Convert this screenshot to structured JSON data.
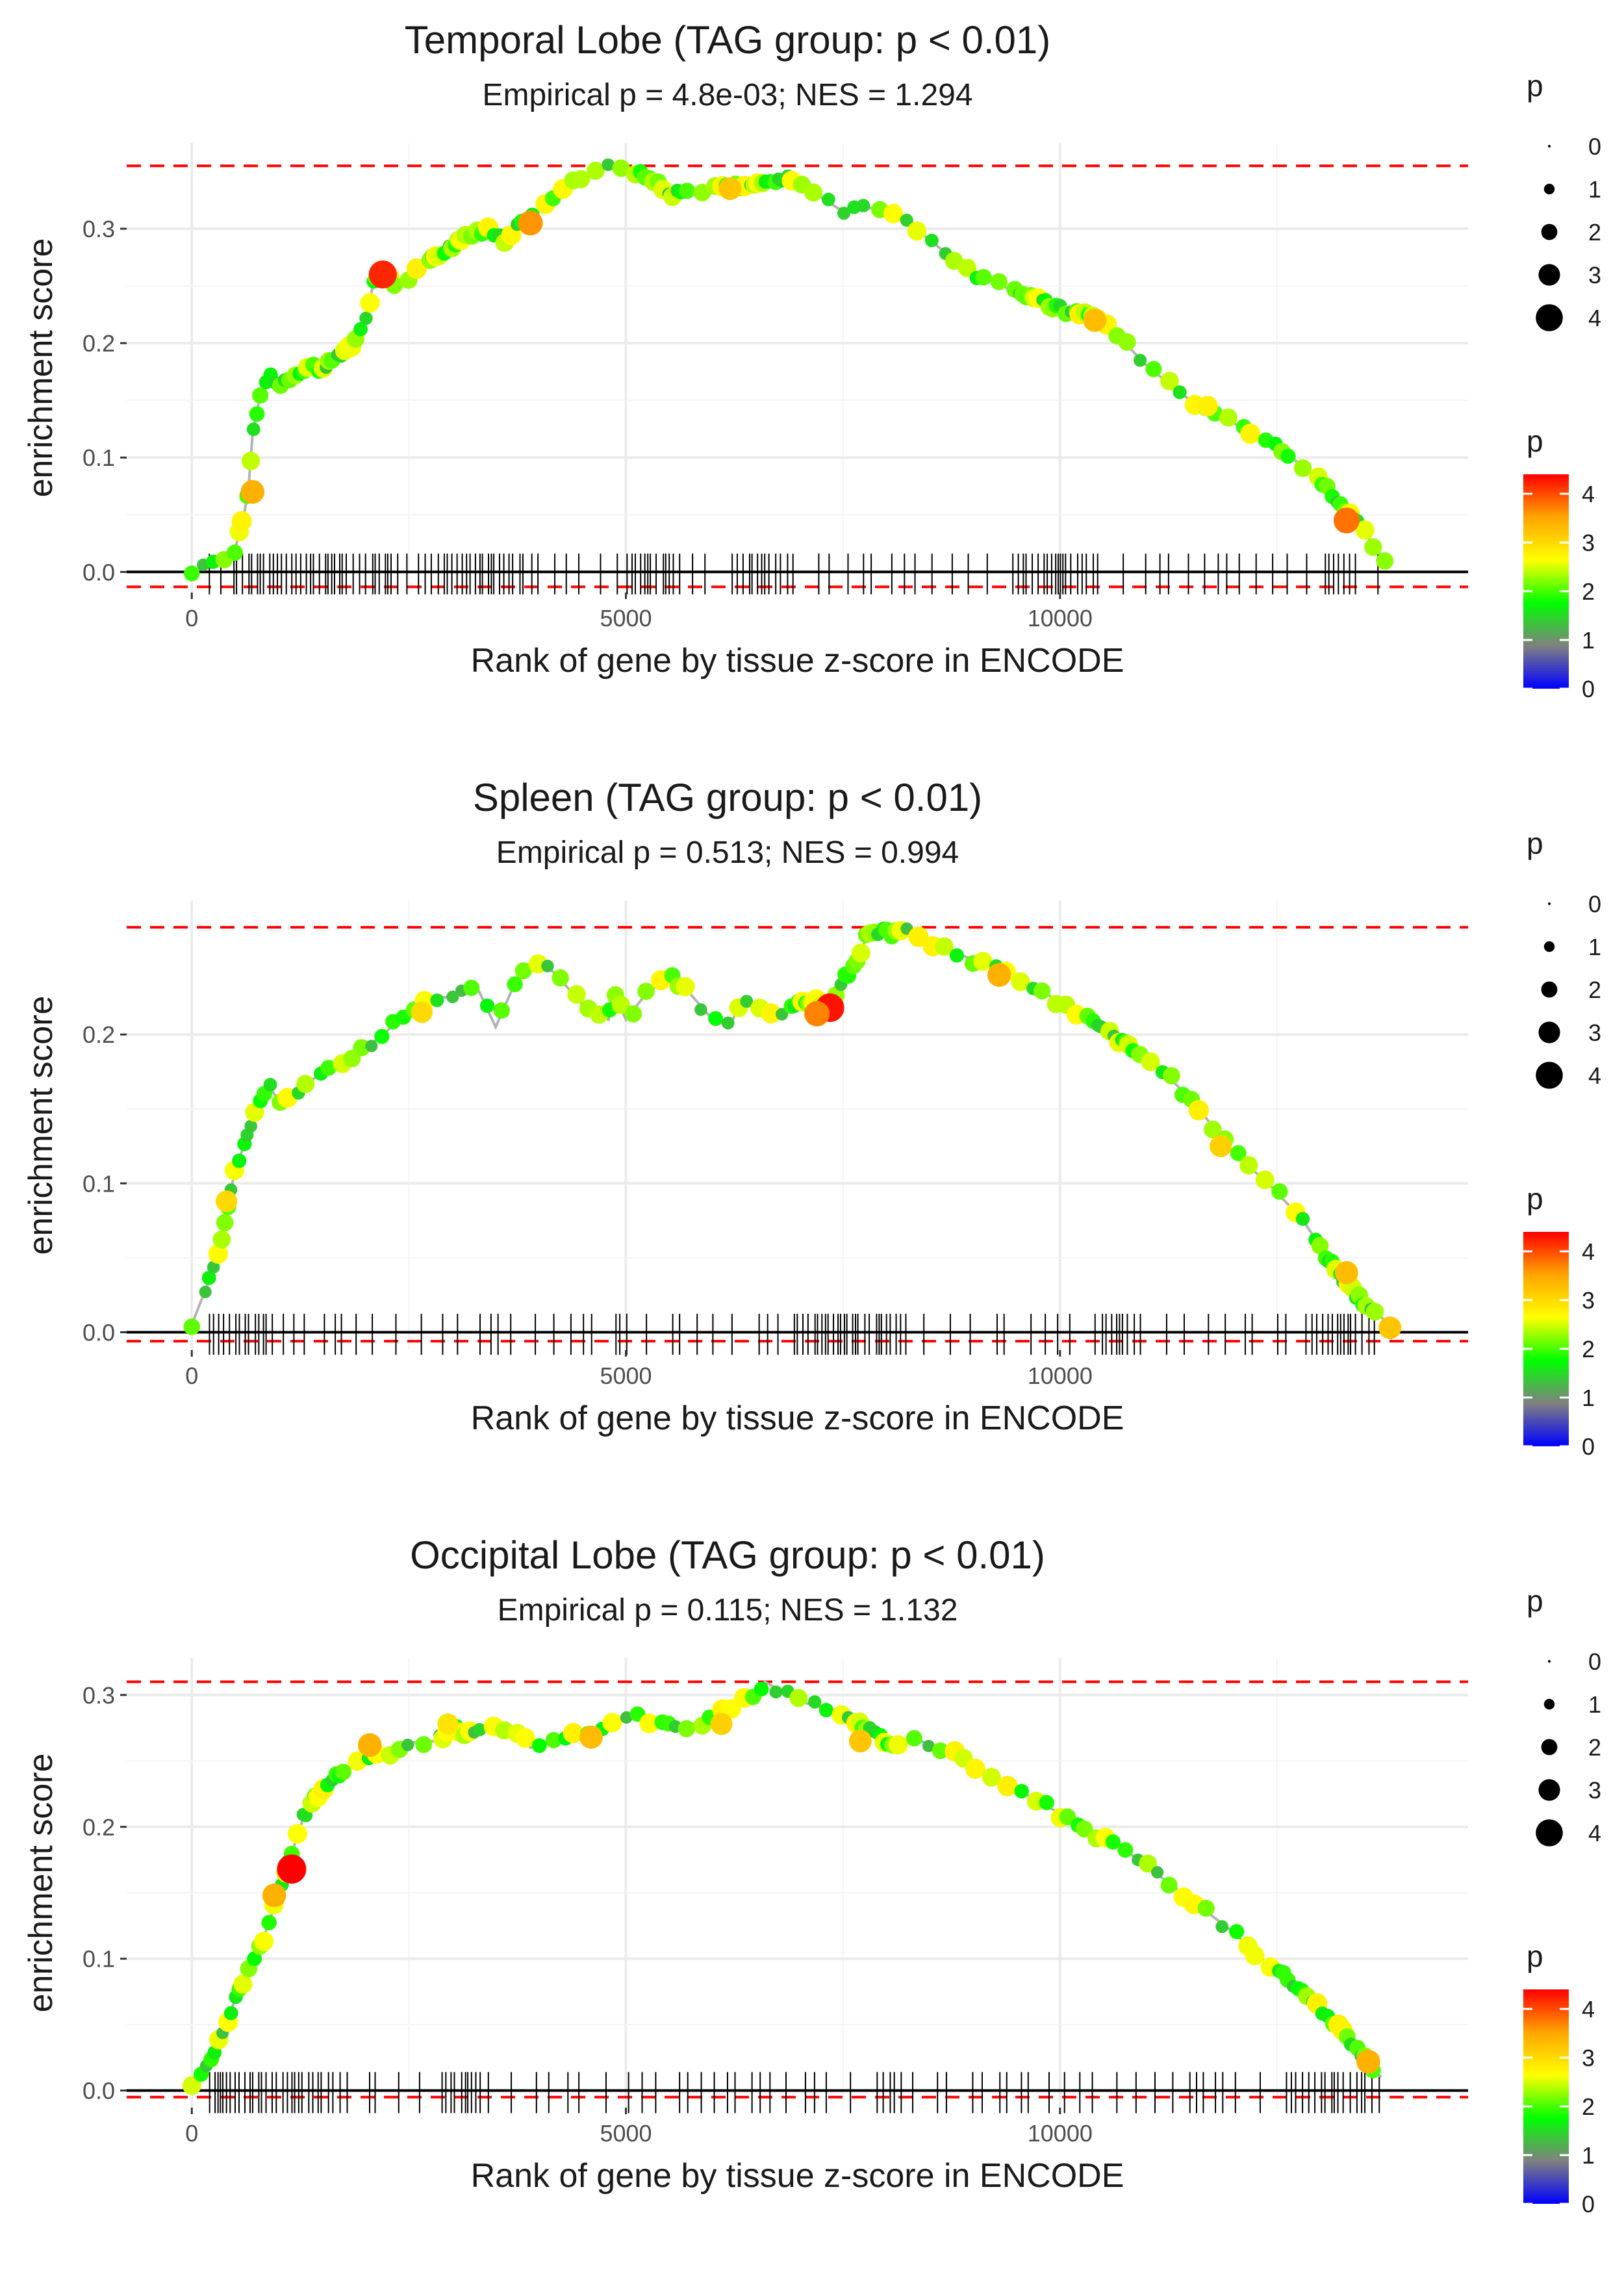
{
  "chart_data": [
    {
      "type": "line",
      "title": "Temporal Lobe (TAG group: p < 0.01)",
      "subtitle": "Empirical p = 4.8e-03; NES = 1.294",
      "xlabel": "Rank of gene by tissue z-score in ENCODE",
      "ylabel": "enrichment score",
      "xlim": [
        -750,
        14700
      ],
      "ylim": [
        -0.018,
        0.375
      ],
      "x_ticks": [
        0,
        5000,
        10000
      ],
      "y_ticks": [
        0.0,
        0.1,
        0.2,
        0.3
      ],
      "y_tick_labels": [
        "0.0",
        "0.1",
        "0.2",
        "0.3"
      ],
      "max_es": 0.355,
      "min_es": -0.013,
      "curve": {
        "x": [
          0,
          150,
          300,
          500,
          600,
          650,
          700,
          750,
          800,
          900,
          1000,
          1200,
          1400,
          1500,
          1600,
          1700,
          1800,
          1900,
          2000,
          2100,
          2200,
          2400,
          2600,
          2800,
          3000,
          3200,
          3400,
          3600,
          3800,
          4000,
          4200,
          4500,
          4700,
          5000,
          5300,
          5500,
          6000,
          6500,
          6900,
          7200,
          7500,
          8000,
          8500,
          9000,
          9500,
          10000,
          10500,
          11000,
          11500,
          12000,
          12500,
          13000,
          13400,
          13800
        ],
        "y": [
          0.0,
          0.005,
          0.01,
          0.02,
          0.05,
          0.07,
          0.12,
          0.14,
          0.16,
          0.17,
          0.165,
          0.17,
          0.18,
          0.175,
          0.185,
          0.19,
          0.195,
          0.205,
          0.22,
          0.255,
          0.26,
          0.25,
          0.265,
          0.275,
          0.285,
          0.295,
          0.3,
          0.29,
          0.305,
          0.315,
          0.33,
          0.345,
          0.355,
          0.353,
          0.345,
          0.33,
          0.335,
          0.34,
          0.345,
          0.33,
          0.315,
          0.32,
          0.29,
          0.26,
          0.245,
          0.23,
          0.22,
          0.18,
          0.15,
          0.13,
          0.11,
          0.08,
          0.045,
          0.005
        ]
      },
      "highlights": [
        {
          "x": 2200,
          "y": 0.26,
          "p": 4.2
        },
        {
          "x": 700,
          "y": 0.07,
          "p": 3.4
        },
        {
          "x": 3900,
          "y": 0.305,
          "p": 3.6
        },
        {
          "x": 6200,
          "y": 0.335,
          "p": 3.2
        },
        {
          "x": 10400,
          "y": 0.22,
          "p": 3.3
        },
        {
          "x": 13300,
          "y": 0.045,
          "p": 3.8
        },
        {
          "x": 11700,
          "y": 0.145,
          "p": 2.8
        }
      ],
      "dense_zones": [
        [
          400,
          2300
        ],
        [
          2600,
          3800
        ],
        [
          5000,
          5600
        ],
        [
          6100,
          6900
        ],
        [
          9400,
          10400
        ],
        [
          12900,
          13400
        ]
      ],
      "rug_seed": 11
    },
    {
      "type": "line",
      "title": "Spleen (TAG group: p < 0.01)",
      "subtitle": "Empirical p = 0.513; NES = 0.994",
      "xlabel": "Rank of gene by tissue z-score in ENCODE",
      "ylabel": "enrichment score",
      "xlim": [
        -750,
        14700
      ],
      "ylim": [
        -0.012,
        0.29
      ],
      "x_ticks": [
        0,
        5000,
        10000
      ],
      "y_ticks": [
        0.0,
        0.1,
        0.2
      ],
      "y_tick_labels": [
        "0.0",
        "0.1",
        "0.2"
      ],
      "max_es": 0.272,
      "min_es": -0.006,
      "curve": {
        "x": [
          0,
          100,
          200,
          300,
          400,
          500,
          600,
          700,
          800,
          900,
          1000,
          1200,
          1400,
          1600,
          1800,
          2000,
          2200,
          2400,
          2600,
          2800,
          3000,
          3200,
          3300,
          3500,
          3800,
          4000,
          4200,
          4500,
          4800,
          4850,
          5000,
          5200,
          5500,
          5700,
          6000,
          6200,
          6300,
          6500,
          6800,
          7000,
          7300,
          7500,
          7700,
          7800,
          8000,
          8300,
          8600,
          9000,
          9400,
          9800,
          10000,
          10400,
          10800,
          11200,
          11600,
          12000,
          12400,
          12800,
          13200,
          13500,
          13800
        ],
        "y": [
          0.005,
          0.02,
          0.035,
          0.05,
          0.08,
          0.11,
          0.125,
          0.14,
          0.16,
          0.165,
          0.155,
          0.16,
          0.17,
          0.18,
          0.185,
          0.19,
          0.2,
          0.21,
          0.22,
          0.225,
          0.225,
          0.23,
          0.23,
          0.205,
          0.245,
          0.25,
          0.24,
          0.22,
          0.21,
          0.23,
          0.21,
          0.225,
          0.24,
          0.23,
          0.21,
          0.205,
          0.22,
          0.22,
          0.215,
          0.225,
          0.22,
          0.235,
          0.255,
          0.27,
          0.268,
          0.27,
          0.26,
          0.25,
          0.24,
          0.23,
          0.22,
          0.21,
          0.19,
          0.175,
          0.15,
          0.12,
          0.1,
          0.075,
          0.04,
          0.02,
          0.005
        ]
      },
      "highlights": [
        {
          "x": 7350,
          "y": 0.218,
          "p": 4.3
        },
        {
          "x": 7200,
          "y": 0.214,
          "p": 3.7
        },
        {
          "x": 13800,
          "y": 0.003,
          "p": 3.2
        },
        {
          "x": 13300,
          "y": 0.04,
          "p": 3.3
        },
        {
          "x": 9300,
          "y": 0.24,
          "p": 3.4
        },
        {
          "x": 400,
          "y": 0.088,
          "p": 3.0
        },
        {
          "x": 11850,
          "y": 0.125,
          "p": 3.1
        },
        {
          "x": 2650,
          "y": 0.215,
          "p": 3.0
        }
      ],
      "dense_zones": [
        [
          100,
          900
        ],
        [
          4700,
          4900
        ],
        [
          6800,
          8200
        ],
        [
          10200,
          10800
        ],
        [
          12900,
          13600
        ]
      ],
      "rug_seed": 23
    },
    {
      "type": "line",
      "title": "Occipital Lobe (TAG group: p < 0.01)",
      "subtitle": "Empirical p = 0.115; NES = 1.132",
      "xlabel": "Rank of gene by tissue z-score in ENCODE",
      "ylabel": "enrichment score",
      "xlim": [
        -750,
        14700
      ],
      "ylim": [
        -0.013,
        0.328
      ],
      "x_ticks": [
        0,
        5000,
        10000
      ],
      "y_ticks": [
        0.0,
        0.1,
        0.2,
        0.3
      ],
      "y_tick_labels": [
        "0.0",
        "0.1",
        "0.2",
        "0.3"
      ],
      "max_es": 0.31,
      "min_es": -0.005,
      "curve": {
        "x": [
          0,
          100,
          200,
          300,
          400,
          500,
          600,
          700,
          800,
          900,
          1000,
          1100,
          1200,
          1300,
          1400,
          1600,
          1800,
          2000,
          2200,
          2400,
          2600,
          2800,
          3000,
          3200,
          3400,
          3700,
          3900,
          4200,
          4500,
          4800,
          5000,
          5300,
          5600,
          5900,
          6200,
          6500,
          6600,
          7000,
          7300,
          7600,
          8000,
          8400,
          8800,
          9200,
          9600,
          10000,
          10400,
          10800,
          11200,
          11600,
          12000,
          12400,
          12800,
          13200,
          13500,
          13700
        ],
        "y": [
          0.005,
          0.01,
          0.02,
          0.035,
          0.05,
          0.07,
          0.085,
          0.095,
          0.11,
          0.13,
          0.15,
          0.168,
          0.19,
          0.21,
          0.22,
          0.235,
          0.245,
          0.25,
          0.255,
          0.26,
          0.265,
          0.265,
          0.275,
          0.27,
          0.275,
          0.275,
          0.26,
          0.265,
          0.27,
          0.275,
          0.285,
          0.28,
          0.275,
          0.28,
          0.29,
          0.3,
          0.31,
          0.295,
          0.29,
          0.28,
          0.265,
          0.265,
          0.255,
          0.24,
          0.225,
          0.21,
          0.195,
          0.18,
          0.16,
          0.14,
          0.12,
          0.095,
          0.075,
          0.05,
          0.025,
          0.01
        ]
      },
      "highlights": [
        {
          "x": 1150,
          "y": 0.168,
          "p": 4.4
        },
        {
          "x": 950,
          "y": 0.148,
          "p": 3.4
        },
        {
          "x": 2050,
          "y": 0.262,
          "p": 3.4
        },
        {
          "x": 4600,
          "y": 0.268,
          "p": 3.3
        },
        {
          "x": 6100,
          "y": 0.278,
          "p": 3.1
        },
        {
          "x": 7700,
          "y": 0.265,
          "p": 3.2
        },
        {
          "x": 13550,
          "y": 0.022,
          "p": 3.4
        },
        {
          "x": 2950,
          "y": 0.278,
          "p": 2.9
        }
      ],
      "dense_zones": [
        [
          100,
          1700
        ],
        [
          2800,
          3300
        ],
        [
          7600,
          8100
        ],
        [
          12500,
          13600
        ]
      ],
      "rug_seed": 37
    }
  ],
  "legend": {
    "size_title": "p",
    "size_labels": [
      "0",
      "1",
      "2",
      "3",
      "4"
    ],
    "color_title": "p",
    "color_labels": [
      "0",
      "1",
      "2",
      "3",
      "4"
    ],
    "color_max": 4.4,
    "color_stops": [
      "#0000ff",
      "#808080",
      "#00ff00",
      "#ffff00",
      "#ffa500",
      "#ff0000"
    ]
  },
  "colors": {
    "threshold_line": "#ff0000",
    "curve_line": "#b3b3b3",
    "zero_line": "#000000",
    "grid": "#ebebeb",
    "rug": "#000000"
  }
}
